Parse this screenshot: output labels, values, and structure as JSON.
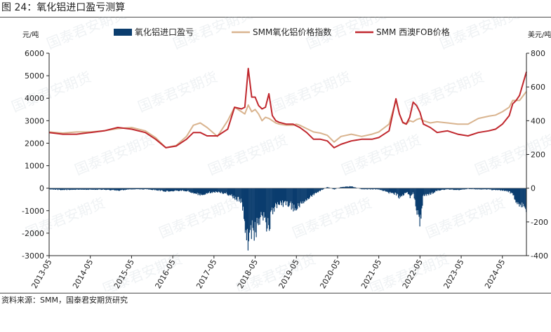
{
  "title": "图 24：氧化铝进口盈亏测算",
  "source": "资料来源：SMM，国泰君安期货研究",
  "watermark": "国泰君安期货",
  "chart_data": {
    "type": "bar+line",
    "title": "",
    "ylabel_left": "元/吨",
    "ylabel_right": "美元/吨",
    "ylim_left": [
      -3000,
      6000
    ],
    "ylim_right": [
      -400,
      800
    ],
    "yticks_left": [
      -3000,
      -2000,
      -1000,
      0,
      1000,
      2000,
      3000,
      4000,
      5000,
      6000
    ],
    "yticks_right": [
      -400,
      -200,
      0,
      200,
      400,
      600,
      800
    ],
    "xlim": [
      "2013-05",
      "2024-12"
    ],
    "x_tick_labels": [
      "2013-05",
      "2014-05",
      "2015-05",
      "2016-05",
      "2017-05",
      "2018-05",
      "2019-05",
      "2020-05",
      "2021-05",
      "2022-05",
      "2023-05",
      "2024-05"
    ],
    "legend_position": "top",
    "grid": false,
    "series": [
      {
        "name": "氧化铝进口盈亏",
        "type": "bar",
        "axis": "left",
        "color": "#0b3d6e",
        "x": [
          "2013-05",
          "2013-09",
          "2014-01",
          "2014-05",
          "2014-09",
          "2015-01",
          "2015-05",
          "2015-09",
          "2015-12",
          "2016-03",
          "2016-06",
          "2016-09",
          "2016-11",
          "2017-01",
          "2017-03",
          "2017-06",
          "2017-09",
          "2017-11",
          "2018-01",
          "2018-02",
          "2018-03",
          "2018-04",
          "2018-05",
          "2018-06",
          "2018-07",
          "2018-08",
          "2018-09",
          "2018-10",
          "2018-11",
          "2018-12",
          "2019-02",
          "2019-04",
          "2019-05",
          "2019-06",
          "2019-08",
          "2019-10",
          "2019-12",
          "2020-02",
          "2020-04",
          "2020-06",
          "2020-09",
          "2020-12",
          "2021-03",
          "2021-05",
          "2021-08",
          "2021-10",
          "2021-11",
          "2021-12",
          "2022-01",
          "2022-02",
          "2022-03",
          "2022-04",
          "2022-05",
          "2022-06",
          "2022-08",
          "2022-10",
          "2023-01",
          "2023-04",
          "2023-07",
          "2023-10",
          "2024-01",
          "2024-03",
          "2024-05",
          "2024-07",
          "2024-08",
          "2024-09",
          "2024-10",
          "2024-11",
          "2024-12"
        ],
        "values": [
          -50,
          -80,
          -60,
          -60,
          -60,
          -100,
          -50,
          -50,
          -80,
          -150,
          -100,
          -120,
          -200,
          -300,
          -200,
          -150,
          -250,
          -400,
          -600,
          -1500,
          -2500,
          -1800,
          -2000,
          -1400,
          -1200,
          -1600,
          -1800,
          -1000,
          -800,
          -700,
          -650,
          -850,
          -1000,
          -700,
          -500,
          -300,
          -100,
          50,
          -50,
          50,
          80,
          -50,
          -50,
          -50,
          -200,
          -250,
          -400,
          -300,
          -150,
          -400,
          -200,
          -1000,
          -1500,
          -300,
          -250,
          -100,
          -50,
          -80,
          -30,
          -50,
          -50,
          -100,
          -100,
          -150,
          -300,
          -600,
          -700,
          -700,
          -1300
        ]
      },
      {
        "name": "SMM氧化铝价格指数",
        "type": "line",
        "axis": "left",
        "color": "#d9b48f",
        "x": [
          "2013-05",
          "2013-09",
          "2014-01",
          "2014-05",
          "2014-09",
          "2015-01",
          "2015-05",
          "2015-09",
          "2015-12",
          "2016-03",
          "2016-06",
          "2016-09",
          "2016-11",
          "2017-01",
          "2017-03",
          "2017-06",
          "2017-09",
          "2017-11",
          "2018-01",
          "2018-02",
          "2018-03",
          "2018-04",
          "2018-05",
          "2018-06",
          "2018-07",
          "2018-08",
          "2018-09",
          "2018-10",
          "2018-11",
          "2018-12",
          "2019-02",
          "2019-04",
          "2019-05",
          "2019-06",
          "2019-08",
          "2019-10",
          "2019-12",
          "2020-02",
          "2020-04",
          "2020-06",
          "2020-09",
          "2020-12",
          "2021-03",
          "2021-05",
          "2021-08",
          "2021-10",
          "2021-11",
          "2021-12",
          "2022-01",
          "2022-02",
          "2022-03",
          "2022-04",
          "2022-05",
          "2022-06",
          "2022-08",
          "2022-10",
          "2023-01",
          "2023-04",
          "2023-07",
          "2023-10",
          "2024-01",
          "2024-03",
          "2024-05",
          "2024-07",
          "2024-08",
          "2024-09",
          "2024-10",
          "2024-11",
          "2024-12"
        ],
        "values": [
          2500,
          2450,
          2500,
          2500,
          2550,
          2650,
          2700,
          2550,
          2250,
          1800,
          1900,
          2300,
          2800,
          2900,
          2700,
          2300,
          3000,
          3600,
          3400,
          3300,
          3700,
          3400,
          3500,
          3300,
          3000,
          3150,
          3100,
          3000,
          2900,
          2850,
          2800,
          2800,
          2850,
          2800,
          2650,
          2500,
          2450,
          2350,
          2050,
          2300,
          2400,
          2300,
          2400,
          2500,
          2850,
          3900,
          3300,
          2900,
          2850,
          3000,
          2950,
          3050,
          3100,
          3000,
          2900,
          2950,
          2900,
          2850,
          2850,
          3100,
          3200,
          3250,
          3400,
          3600,
          3900,
          3900,
          3900,
          4100,
          4300
        ]
      },
      {
        "name": "SMM 西澳FOB价格",
        "type": "line",
        "axis": "right",
        "color": "#c0272d",
        "x": [
          "2013-05",
          "2013-09",
          "2014-01",
          "2014-05",
          "2014-09",
          "2015-01",
          "2015-05",
          "2015-09",
          "2015-12",
          "2016-03",
          "2016-06",
          "2016-09",
          "2016-11",
          "2017-01",
          "2017-03",
          "2017-06",
          "2017-09",
          "2017-11",
          "2018-01",
          "2018-02",
          "2018-03",
          "2018-04",
          "2018-05",
          "2018-06",
          "2018-07",
          "2018-08",
          "2018-09",
          "2018-10",
          "2018-11",
          "2018-12",
          "2019-02",
          "2019-04",
          "2019-05",
          "2019-06",
          "2019-08",
          "2019-10",
          "2019-12",
          "2020-02",
          "2020-04",
          "2020-06",
          "2020-09",
          "2020-12",
          "2021-03",
          "2021-05",
          "2021-08",
          "2021-10",
          "2021-11",
          "2021-12",
          "2022-01",
          "2022-02",
          "2022-03",
          "2022-04",
          "2022-05",
          "2022-06",
          "2022-08",
          "2022-10",
          "2023-01",
          "2023-04",
          "2023-07",
          "2023-10",
          "2024-01",
          "2024-03",
          "2024-05",
          "2024-07",
          "2024-08",
          "2024-09",
          "2024-10",
          "2024-11",
          "2024-12"
        ],
        "values": [
          330,
          320,
          320,
          330,
          340,
          360,
          350,
          330,
          290,
          240,
          250,
          290,
          330,
          330,
          310,
          310,
          350,
          480,
          470,
          480,
          710,
          540,
          540,
          490,
          470,
          480,
          560,
          430,
          400,
          390,
          380,
          380,
          370,
          360,
          330,
          290,
          290,
          280,
          240,
          260,
          280,
          290,
          290,
          300,
          340,
          530,
          440,
          390,
          380,
          420,
          510,
          490,
          450,
          380,
          360,
          330,
          340,
          320,
          310,
          330,
          340,
          350,
          380,
          430,
          500,
          520,
          550,
          620,
          690
        ]
      }
    ]
  }
}
